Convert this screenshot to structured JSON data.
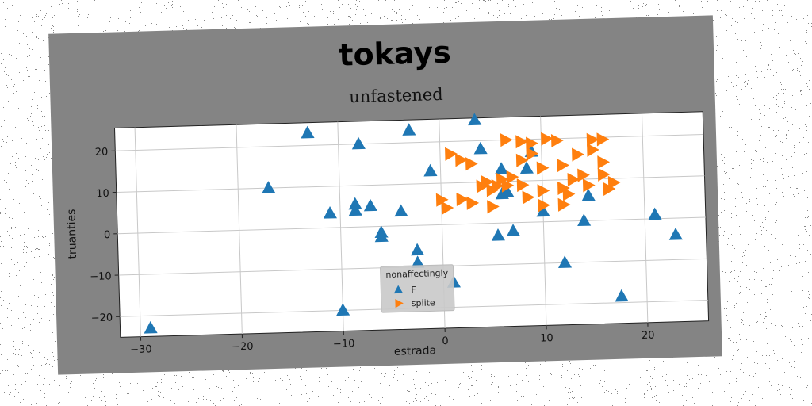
{
  "chart_data": {
    "type": "scatter",
    "title": "tokays",
    "subtitle": "unfastened",
    "xlabel": "estrada",
    "ylabel": "truanties",
    "xlim": [
      -32,
      26
    ],
    "ylim": [
      -25,
      25.5
    ],
    "xticks": [
      -30,
      -20,
      -10,
      0,
      10,
      20
    ],
    "yticks": [
      -20,
      -10,
      0,
      10,
      20
    ],
    "grid": true,
    "legend": {
      "title": "nonaffectingly",
      "placement": "lower-center"
    },
    "series": [
      {
        "name": "F",
        "marker": "triangle-up",
        "color": "#1f77b4",
        "points": [
          [
            -29,
            -23
          ],
          [
            -17,
            10
          ],
          [
            -13,
            23
          ],
          [
            -11,
            3.5
          ],
          [
            -10,
            -20
          ],
          [
            -8.5,
            4
          ],
          [
            -8.5,
            5.5
          ],
          [
            -8,
            20
          ],
          [
            -7,
            5
          ],
          [
            -6,
            -1.5
          ],
          [
            -6,
            -2.5
          ],
          [
            -4,
            3.5
          ],
          [
            -3,
            23
          ],
          [
            -2.5,
            -6
          ],
          [
            -2.5,
            -9
          ],
          [
            -1,
            13
          ],
          [
            1,
            -14
          ],
          [
            3.5,
            25
          ],
          [
            4,
            18
          ],
          [
            5.5,
            -3
          ],
          [
            6,
            13
          ],
          [
            6,
            7
          ],
          [
            6.5,
            7.5
          ],
          [
            7,
            -2
          ],
          [
            8.5,
            13
          ],
          [
            9,
            17
          ],
          [
            10,
            2.5
          ],
          [
            12,
            -10
          ],
          [
            14,
            0
          ],
          [
            14.5,
            6
          ],
          [
            17.5,
            -18.5
          ],
          [
            21,
            1
          ],
          [
            23,
            -4
          ]
        ]
      },
      {
        "name": "spiite",
        "marker": "triangle-right",
        "color": "#ff7f0e",
        "points": [
          [
            0,
            6
          ],
          [
            0.5,
            4
          ],
          [
            1,
            17
          ],
          [
            2,
            6
          ],
          [
            2,
            15.5
          ],
          [
            3,
            14.5
          ],
          [
            3,
            5
          ],
          [
            4,
            9
          ],
          [
            4.5,
            10
          ],
          [
            5,
            8
          ],
          [
            5,
            4
          ],
          [
            5.5,
            9
          ],
          [
            6,
            10.5
          ],
          [
            6.5,
            9
          ],
          [
            6.5,
            20
          ],
          [
            7,
            11
          ],
          [
            8,
            19.5
          ],
          [
            8,
            15
          ],
          [
            8,
            9
          ],
          [
            8.5,
            6
          ],
          [
            9,
            19
          ],
          [
            9,
            16.5
          ],
          [
            10,
            13
          ],
          [
            10,
            7.5
          ],
          [
            10,
            4
          ],
          [
            10.5,
            20
          ],
          [
            11.5,
            19.5
          ],
          [
            12,
            13.5
          ],
          [
            12,
            8
          ],
          [
            12,
            4
          ],
          [
            12.5,
            6.5
          ],
          [
            13,
            10
          ],
          [
            13.5,
            16
          ],
          [
            14,
            11
          ],
          [
            14.5,
            8.5
          ],
          [
            15,
            19.5
          ],
          [
            15,
            17
          ],
          [
            16,
            19.5
          ],
          [
            16,
            14
          ],
          [
            16,
            11
          ],
          [
            16.5,
            7.5
          ],
          [
            17,
            9
          ]
        ]
      }
    ]
  }
}
